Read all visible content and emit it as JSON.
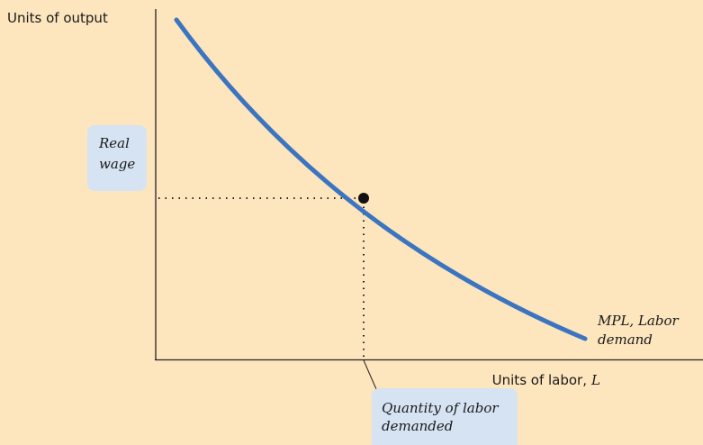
{
  "y_axis_label": "Units of output",
  "x_axis_label": {
    "text": "Units of labor,",
    "variable": "L"
  },
  "curve_label": [
    "MPL, Labor",
    "demand"
  ],
  "callouts": {
    "real_wage": [
      "Real",
      "wage"
    ],
    "quantity": [
      "Quantity of labor",
      "demanded"
    ]
  }
}
